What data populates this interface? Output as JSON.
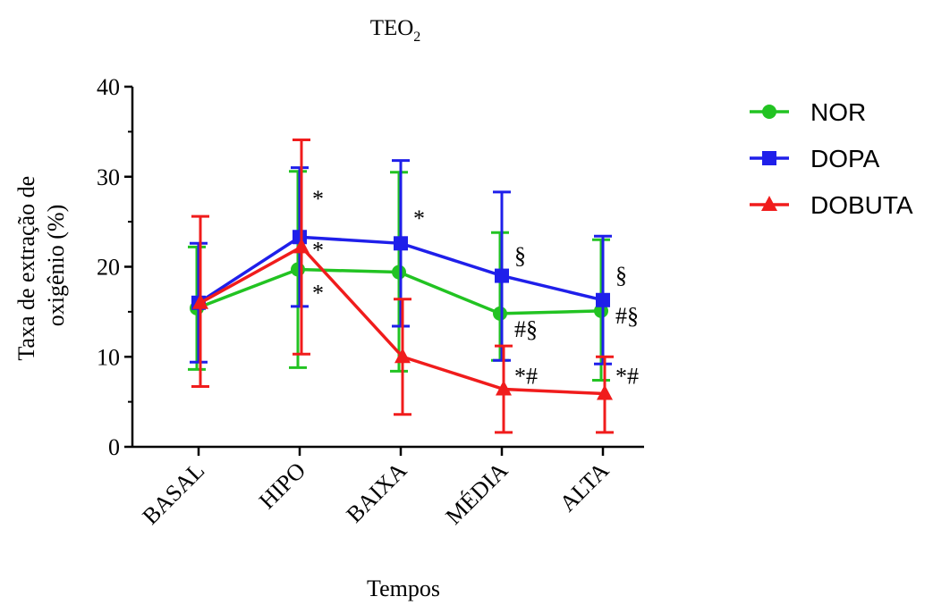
{
  "chart_data": {
    "type": "line",
    "title_main": "TEO",
    "title_sub": "2",
    "xlabel": "Tempos",
    "ylabel_line1": "Taxa de extração de",
    "ylabel_line2": "oxigênio (%)",
    "ylim": [
      0,
      40
    ],
    "yticks": [
      "0",
      "10",
      "20",
      "30",
      "40"
    ],
    "categories": [
      "BASAL",
      "HIPO",
      "BAIXA",
      "MÉDIA",
      "ALTA"
    ],
    "legend_position": "right",
    "series": [
      {
        "name": "NOR",
        "color": "#22c322",
        "marker": "circle",
        "values": [
          15.4,
          19.7,
          19.4,
          14.8,
          15.1
        ],
        "err_upper": [
          22.2,
          30.6,
          30.5,
          23.8,
          23.0
        ],
        "err_lower": [
          8.6,
          8.8,
          8.4,
          9.6,
          7.4
        ]
      },
      {
        "name": "DOPA",
        "color": "#1f1fea",
        "marker": "square",
        "values": [
          16.0,
          23.3,
          22.6,
          19.0,
          16.3
        ],
        "err_upper": [
          22.6,
          31.0,
          31.8,
          28.3,
          23.4
        ],
        "err_lower": [
          9.4,
          15.6,
          13.4,
          9.6,
          9.2
        ]
      },
      {
        "name": "DOBUTA",
        "color": "#f01c1c",
        "marker": "triangle",
        "values": [
          16.0,
          22.2,
          10.0,
          6.4,
          5.9
        ],
        "err_upper": [
          25.6,
          34.1,
          16.4,
          11.2,
          10.0
        ],
        "err_lower": [
          6.7,
          10.3,
          3.6,
          1.6,
          1.6
        ]
      }
    ],
    "annotations": [
      {
        "text": "*",
        "category": 1,
        "y": 27.5
      },
      {
        "text": "*",
        "category": 1,
        "y": 21.8
      },
      {
        "text": "*",
        "category": 1,
        "y": 17.0
      },
      {
        "text": "*",
        "category": 2,
        "y": 25.3
      },
      {
        "text": "§",
        "category": 3,
        "y": 21.2
      },
      {
        "text": "#§",
        "category": 3,
        "y": 13.0
      },
      {
        "text": "*#",
        "category": 3,
        "y": 7.8
      },
      {
        "text": "§",
        "category": 4,
        "y": 19.0
      },
      {
        "text": "#§",
        "category": 4,
        "y": 14.5
      },
      {
        "text": "*#",
        "category": 4,
        "y": 7.8
      }
    ]
  }
}
